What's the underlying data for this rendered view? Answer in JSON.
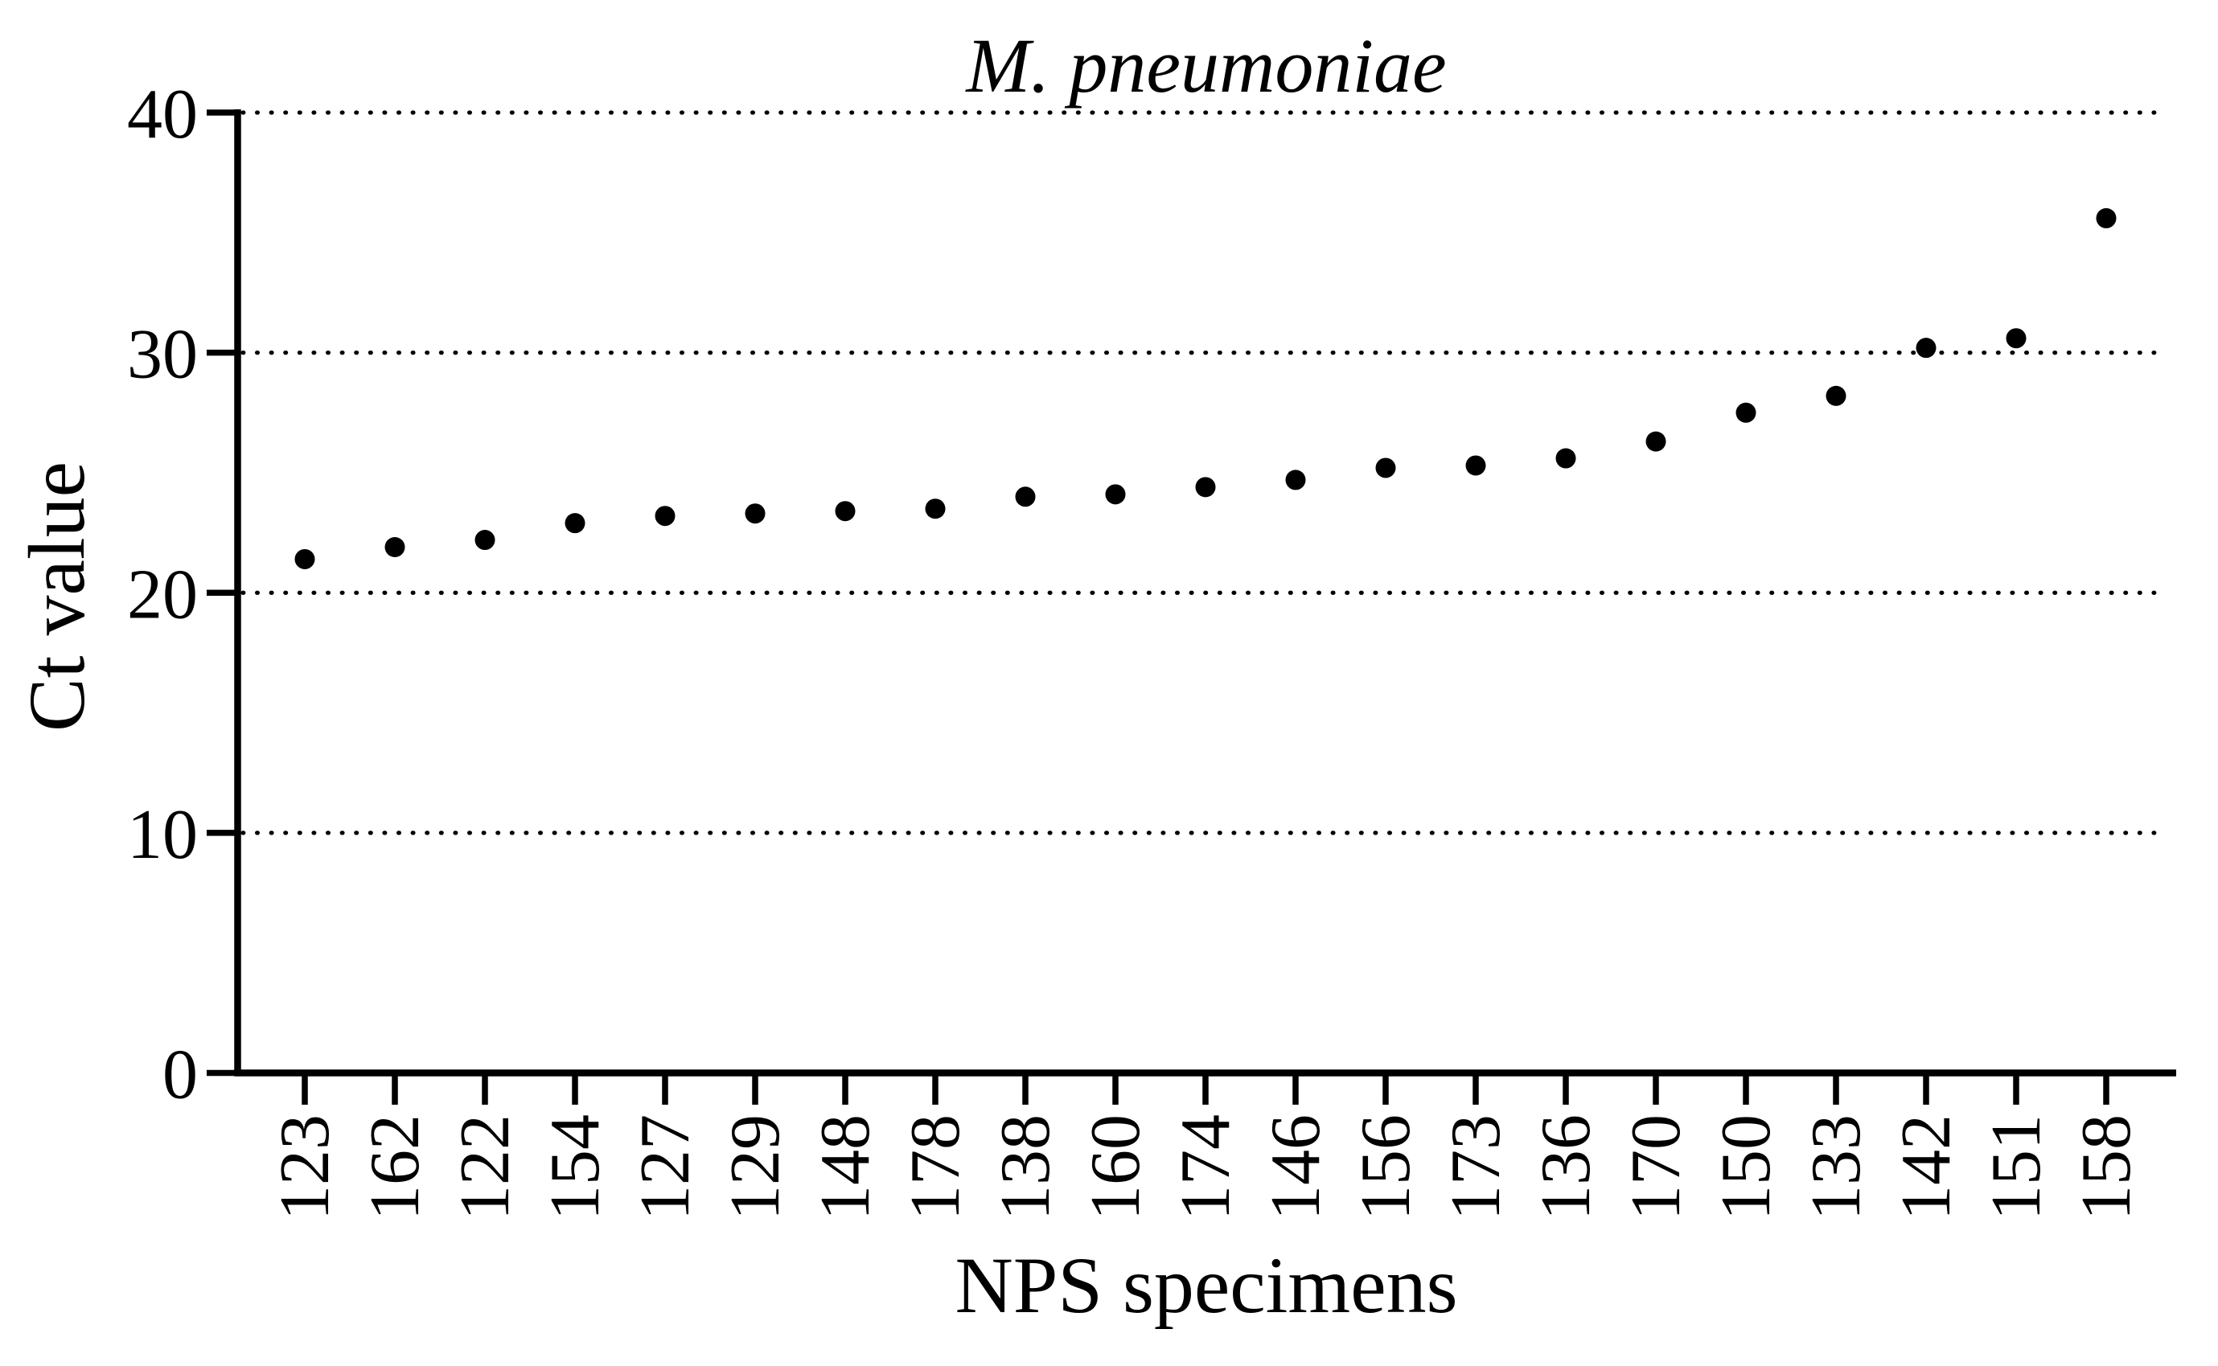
{
  "page": {
    "background": "#ffffff",
    "foreground": "#000000"
  },
  "chart_data": {
    "type": "scatter",
    "title": "M. pneumoniae",
    "xlabel": "NPS specimens",
    "ylabel": "Ct value",
    "categories": [
      "123",
      "162",
      "122",
      "154",
      "127",
      "129",
      "148",
      "178",
      "138",
      "160",
      "174",
      "146",
      "156",
      "173",
      "136",
      "170",
      "150",
      "133",
      "142",
      "151",
      "158"
    ],
    "values": [
      21.4,
      21.9,
      22.2,
      22.9,
      23.2,
      23.3,
      23.4,
      23.5,
      24.0,
      24.1,
      24.4,
      24.7,
      25.2,
      25.3,
      25.6,
      26.3,
      27.5,
      28.2,
      30.2,
      30.6,
      35.6
    ],
    "ylim": [
      0,
      40
    ],
    "yticks": [
      0,
      10,
      20,
      30,
      40
    ],
    "gridlines": {
      "style": "dotted",
      "at": [
        10,
        20,
        30,
        40
      ]
    },
    "legend": "none",
    "marker": "filled-circle",
    "marker_color": "#000000",
    "grid_on": true
  }
}
